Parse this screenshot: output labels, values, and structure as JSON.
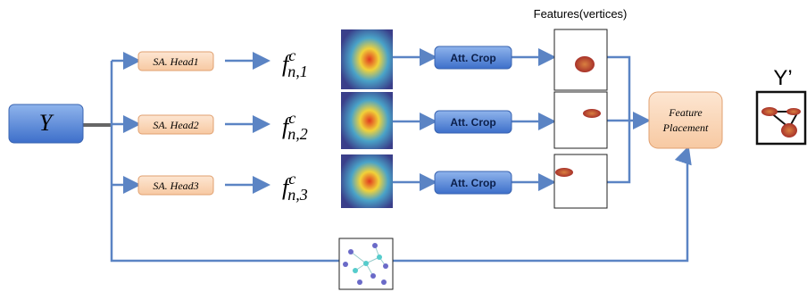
{
  "input": {
    "label": "Y"
  },
  "heads": [
    {
      "label": "SA. Head1",
      "feature": {
        "base": "f",
        "sup": "c",
        "sub": "n,1"
      },
      "crop": "Att. Crop"
    },
    {
      "label": "SA. Head2",
      "feature": {
        "base": "f",
        "sup": "c",
        "sub": "n,2"
      },
      "crop": "Att. Crop"
    },
    {
      "label": "SA. Head3",
      "feature": {
        "base": "f",
        "sup": "c",
        "sub": "n,3"
      },
      "crop": "Att. Crop"
    }
  ],
  "features_title": "Features(vertices)",
  "placement": {
    "lines": [
      "Feature",
      "Placement"
    ]
  },
  "output": {
    "label": "Y’"
  }
}
